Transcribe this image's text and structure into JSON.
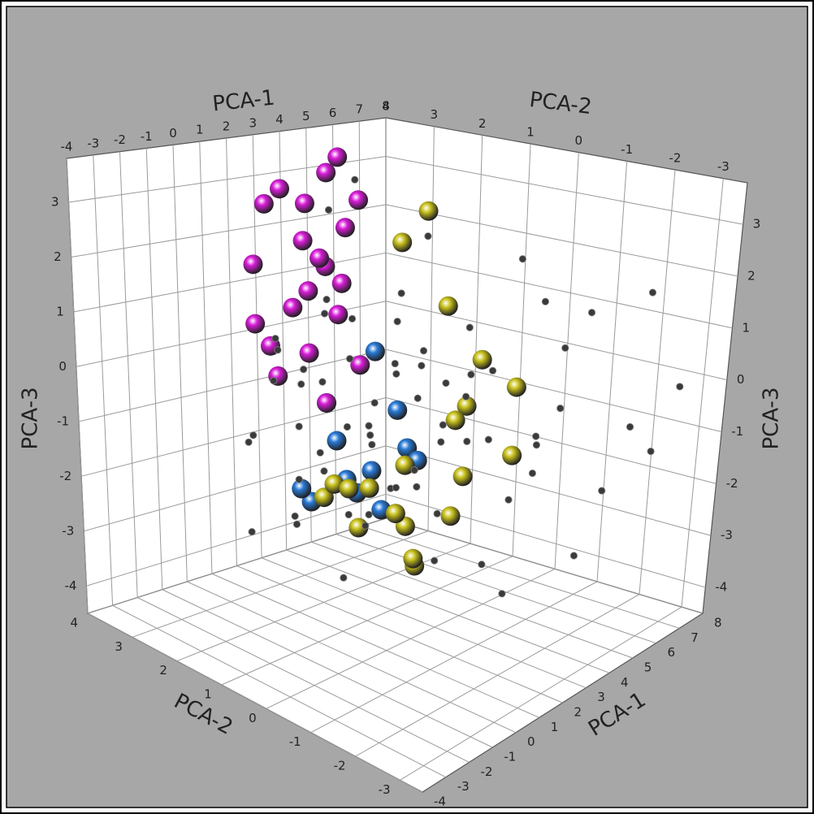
{
  "chart_data": {
    "type": "scatter3d",
    "xlabel": "PCA-1",
    "ylabel": "PCA-2",
    "zlabel": "PCA-3",
    "xlim": [
      -4,
      8
    ],
    "ylim": [
      -3.5,
      4
    ],
    "zlim": [
      -4.5,
      3.8
    ],
    "xticks": [
      -4,
      -3,
      -2,
      -1,
      0,
      1,
      2,
      3,
      4,
      5,
      6,
      7,
      8
    ],
    "yticks": [
      -3,
      -2,
      -1,
      0,
      1,
      2,
      3,
      4
    ],
    "zticks": [
      -4,
      -3,
      -2,
      -1,
      0,
      1,
      2,
      3
    ],
    "grid": true,
    "series": [
      {
        "color": "#2a7ad6",
        "marker": "sphere",
        "x": [
          2,
          2.5,
          3,
          1.5,
          3,
          2,
          3.5,
          4,
          2.5,
          3,
          4,
          1.5
        ],
        "y": [
          1.5,
          2,
          1.5,
          2,
          2.5,
          2.5,
          1,
          1.5,
          1,
          0.5,
          2,
          1
        ],
        "z": [
          -2,
          -1.5,
          -2,
          -2.5,
          -1,
          -2.5,
          -1.5,
          -1,
          -2.5,
          -1.5,
          0,
          -2
        ]
      },
      {
        "color": "#c9c21e",
        "marker": "sphere",
        "x": [
          2,
          2.5,
          3,
          2,
          1.5,
          3,
          3.5,
          4,
          2.5,
          4,
          5,
          5,
          5.5,
          6,
          4.5,
          3,
          6,
          3.5,
          2,
          5
        ],
        "y": [
          1,
          1.5,
          0.5,
          2,
          1.5,
          2,
          1,
          1.5,
          0.5,
          0,
          1,
          2,
          0.5,
          0,
          0.5,
          -0.5,
          2,
          0,
          0,
          -0.5
        ],
        "z": [
          -2,
          -3,
          -3.5,
          -2.5,
          -2,
          -2.5,
          -3,
          -3,
          -1.5,
          -0.5,
          1,
          2,
          0,
          -0.5,
          -1,
          -1.5,
          2.5,
          -2.5,
          -3,
          -1.5
        ]
      },
      {
        "color": "#d81cd8",
        "marker": "sphere",
        "x": [
          3,
          4,
          2.5,
          3.5,
          4.5,
          2,
          3,
          5,
          4,
          2.5,
          3.5,
          2,
          4.5,
          3,
          5,
          5.5,
          1.5,
          4,
          3.2,
          2.8,
          5.8
        ],
        "y": [
          3,
          3.5,
          3.2,
          2.8,
          3,
          3.5,
          3.8,
          3.2,
          2.8,
          2.6,
          3.5,
          3,
          2.6,
          2.5,
          3.6,
          3.2,
          3.2,
          3.2,
          3,
          3.6,
          3.8
        ],
        "z": [
          2,
          2.5,
          3,
          1.5,
          1,
          1.5,
          2.5,
          2,
          0.5,
          0,
          0.5,
          -0.5,
          -0.5,
          -1,
          3,
          2.5,
          0.5,
          1.5,
          1,
          -0.2,
          3.2
        ]
      },
      {
        "color": "#3a3a3a",
        "marker": "point",
        "x": [
          2,
          3,
          1,
          2,
          3,
          4,
          2,
          1,
          3,
          4,
          2,
          5,
          1,
          0,
          3,
          4,
          5,
          6,
          5,
          6,
          7,
          7,
          6,
          7,
          7.5,
          4,
          3,
          2,
          1,
          0,
          0,
          -1,
          1,
          2,
          3,
          4,
          5,
          6,
          2,
          1,
          3,
          4,
          5,
          6,
          4,
          5,
          3,
          2,
          1,
          0,
          -1,
          0,
          1,
          2,
          3,
          4,
          5,
          6,
          4,
          3,
          2,
          1,
          3,
          2,
          4,
          5,
          3,
          1,
          7,
          6
        ],
        "y": [
          1,
          2,
          2,
          2.5,
          1.5,
          1,
          0.5,
          1.5,
          0,
          2,
          2,
          1,
          3,
          2,
          2.5,
          0,
          0,
          -1,
          -1,
          0,
          -1,
          -2,
          -2,
          -3,
          -2,
          -1,
          -1,
          -2,
          -1,
          0,
          1,
          2,
          0,
          1,
          0.5,
          -0.5,
          0.5,
          1,
          3,
          2.5,
          3,
          2.5,
          2,
          2,
          3,
          3,
          1,
          0,
          0.5,
          1.5,
          1,
          2.5,
          1,
          -0.5,
          -2,
          -2,
          -2,
          -3,
          1.5,
          2,
          1.5,
          2,
          1,
          2,
          0.5,
          1.5,
          -0.5,
          -0.5,
          0,
          -0.5
        ],
        "z": [
          -1,
          0,
          -1,
          -0.5,
          -1.5,
          0,
          0.5,
          0,
          -1,
          -1,
          -2,
          -0.5,
          -1.5,
          0,
          1,
          1,
          0,
          0.5,
          -1,
          2,
          1,
          -1,
          -2,
          0,
          1.5,
          -2,
          -3,
          -3,
          -2.5,
          -2,
          -1,
          -1,
          -1.5,
          -2.5,
          -2,
          -1,
          -1.5,
          -0.5,
          0,
          0.5,
          -0.5,
          0.5,
          1,
          2,
          2.5,
          3,
          1,
          0,
          -0.5,
          -2.5,
          -2,
          -3,
          -3.5,
          -2,
          -1,
          0,
          -3,
          -1,
          -2.5,
          -3,
          -1,
          -2,
          0,
          1,
          -1,
          0,
          0,
          -1,
          1,
          -1.5
        ]
      }
    ]
  }
}
